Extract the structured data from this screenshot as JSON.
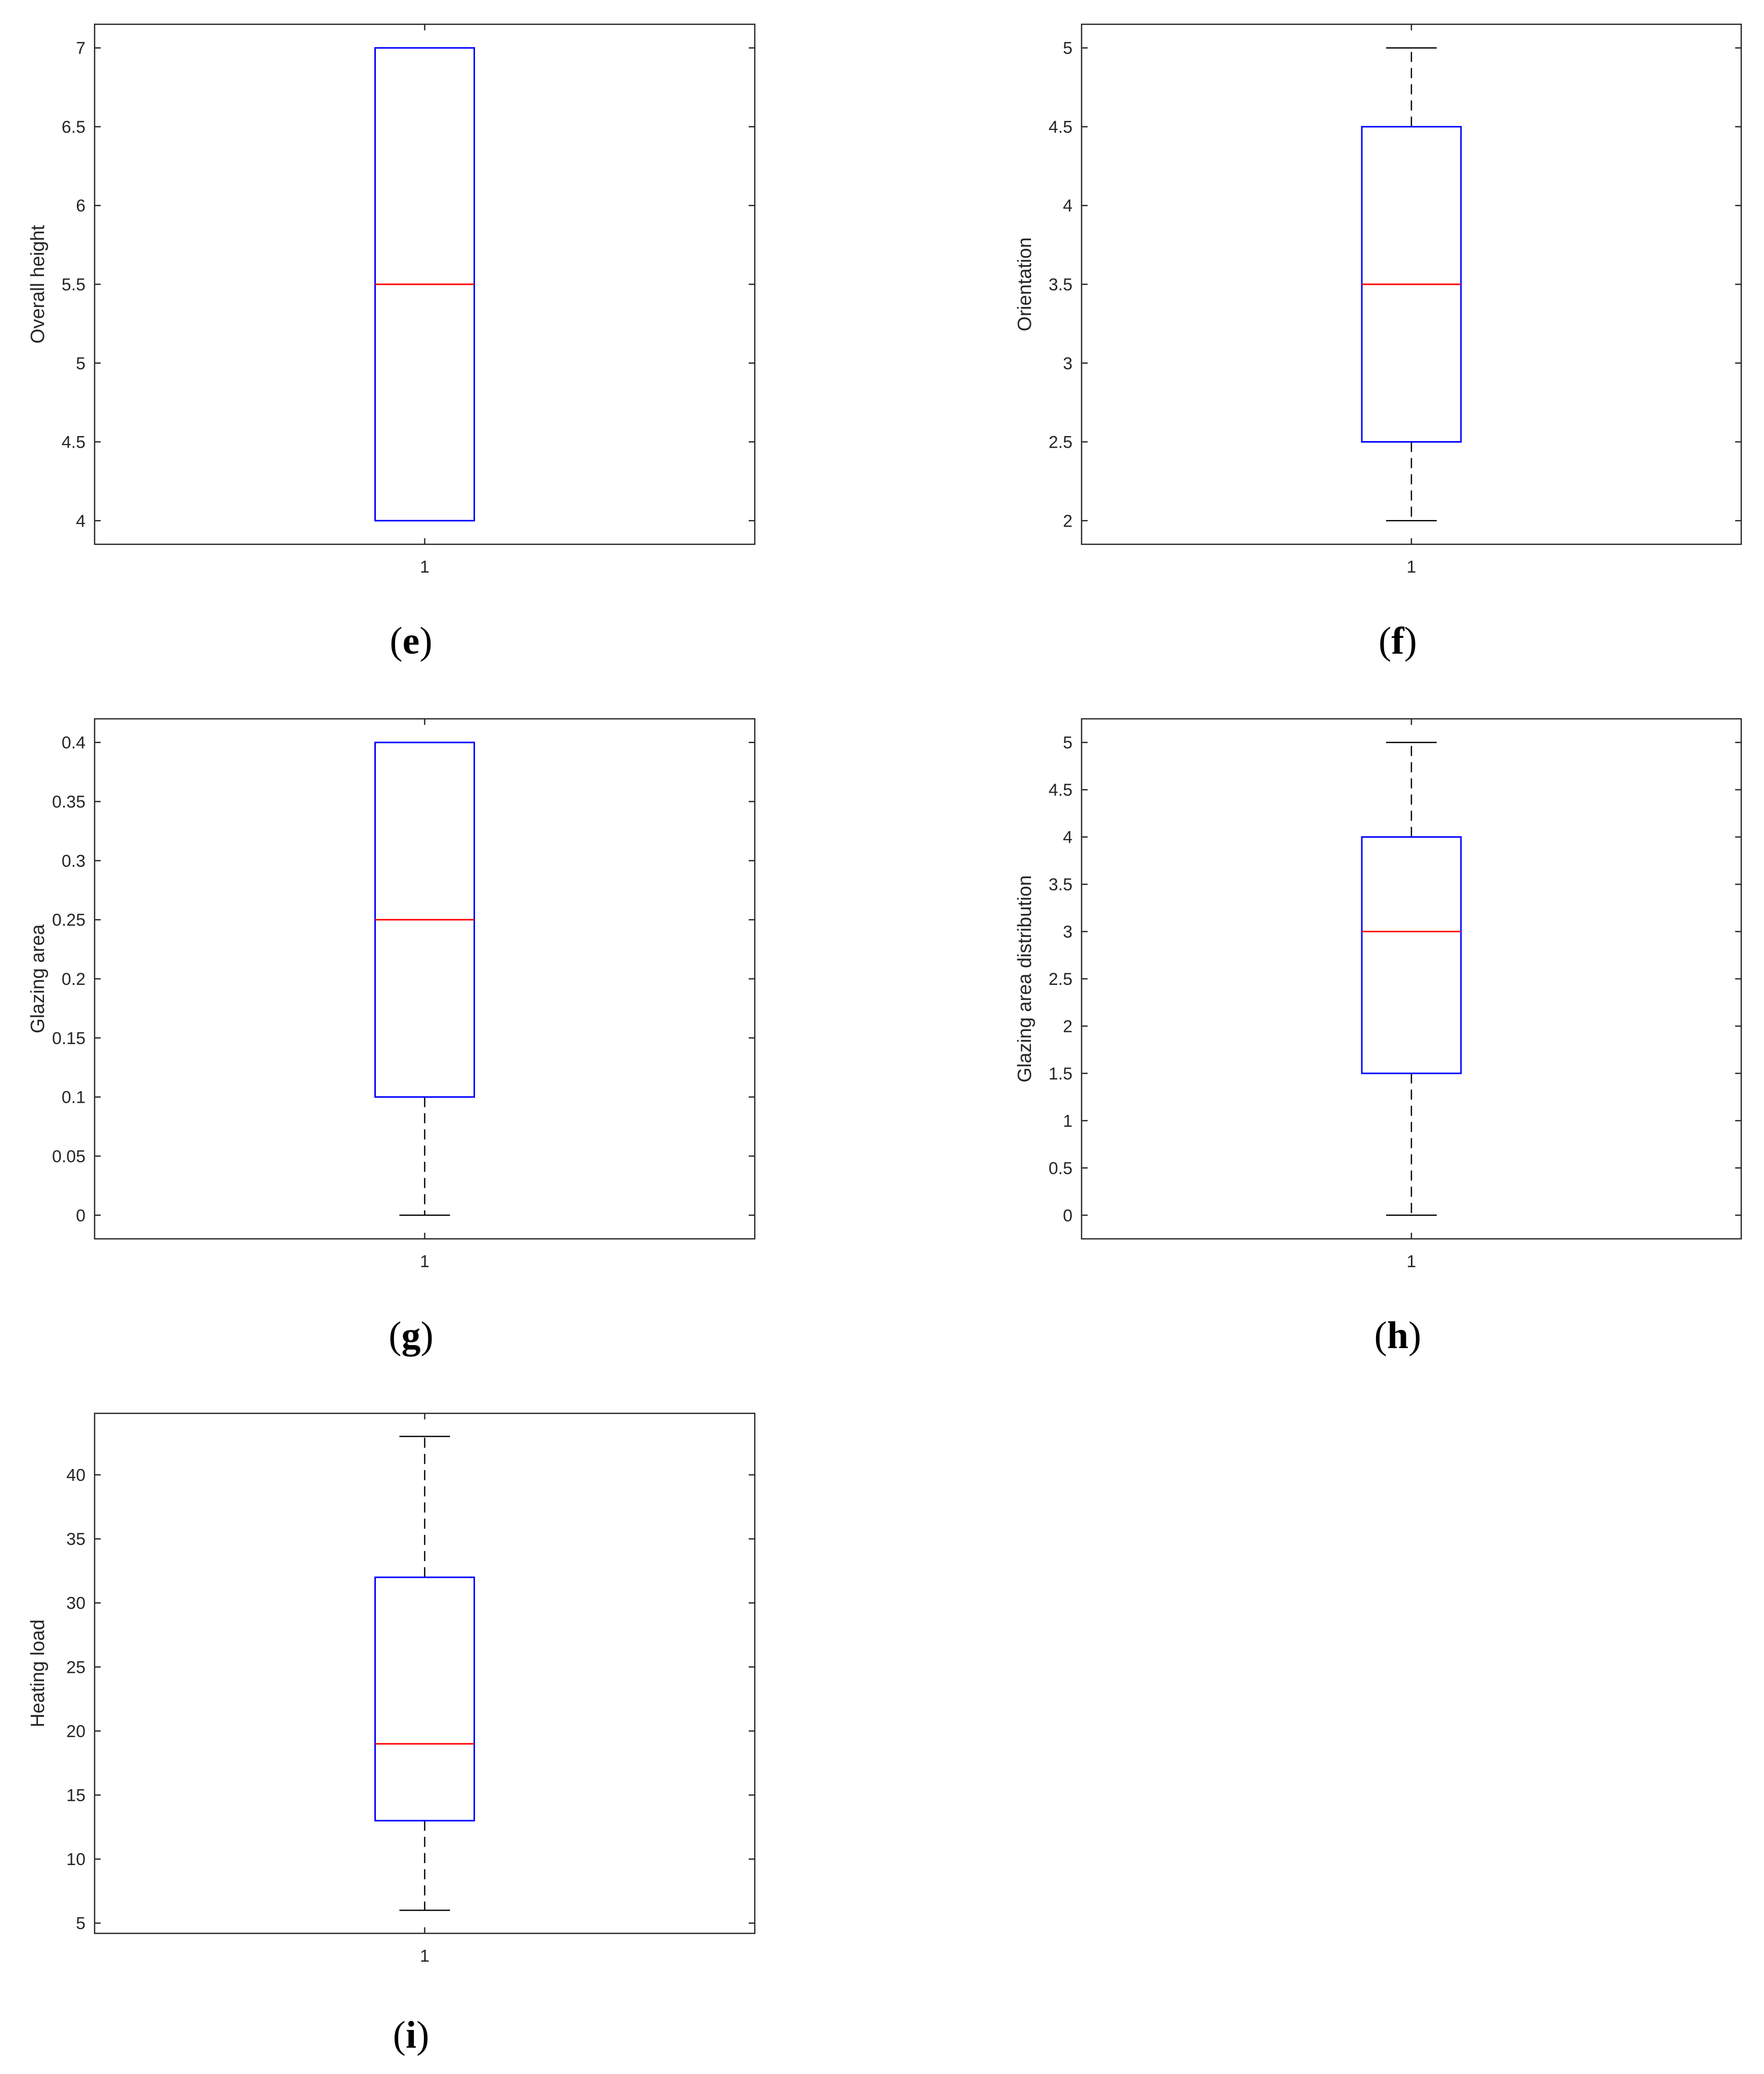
{
  "chart_data": [
    {
      "type": "box",
      "panel": "e",
      "ylabel": "Overall height",
      "categories": [
        "1"
      ],
      "yticks": [
        "4",
        "4.5",
        "5",
        "5.5",
        "6",
        "6.5",
        "7"
      ],
      "ylim": [
        3.85,
        7.15
      ],
      "box": {
        "whisker_low": 4,
        "q1": 4,
        "median": 5.5,
        "q3": 7,
        "whisker_high": 7
      }
    },
    {
      "type": "box",
      "panel": "f",
      "ylabel": "Orientation",
      "categories": [
        "1"
      ],
      "yticks": [
        "2",
        "2.5",
        "3",
        "3.5",
        "4",
        "4.5",
        "5"
      ],
      "ylim": [
        1.85,
        5.15
      ],
      "box": {
        "whisker_low": 2,
        "q1": 2.5,
        "median": 3.5,
        "q3": 4.5,
        "whisker_high": 5
      }
    },
    {
      "type": "box",
      "panel": "g",
      "ylabel": "Glazing area",
      "categories": [
        "1"
      ],
      "yticks": [
        "0",
        "0.05",
        "0.1",
        "0.15",
        "0.2",
        "0.25",
        "0.3",
        "0.35",
        "0.4"
      ],
      "ylim": [
        -0.02,
        0.42
      ],
      "box": {
        "whisker_low": 0,
        "q1": 0.1,
        "median": 0.25,
        "q3": 0.4,
        "whisker_high": 0.4
      }
    },
    {
      "type": "box",
      "panel": "h",
      "ylabel": "Glazing area distribution",
      "categories": [
        "1"
      ],
      "yticks": [
        "0",
        "0.5",
        "1",
        "1.5",
        "2",
        "2.5",
        "3",
        "3.5",
        "4",
        "4.5",
        "5"
      ],
      "ylim": [
        -0.25,
        5.25
      ],
      "box": {
        "whisker_low": 0,
        "q1": 1.5,
        "median": 3,
        "q3": 4,
        "whisker_high": 5
      }
    },
    {
      "type": "box",
      "panel": "i",
      "ylabel": "Heating load",
      "categories": [
        "1"
      ],
      "yticks": [
        "5",
        "10",
        "15",
        "20",
        "25",
        "30",
        "35",
        "40"
      ],
      "ylim": [
        4.2,
        44.8
      ],
      "box": {
        "whisker_low": 6,
        "q1": 13,
        "median": 19,
        "q3": 32,
        "whisker_high": 43
      }
    }
  ],
  "colors": {
    "box": "#0000ff",
    "median": "#ff0000",
    "whisker": "#000000",
    "axis": "#262626"
  }
}
